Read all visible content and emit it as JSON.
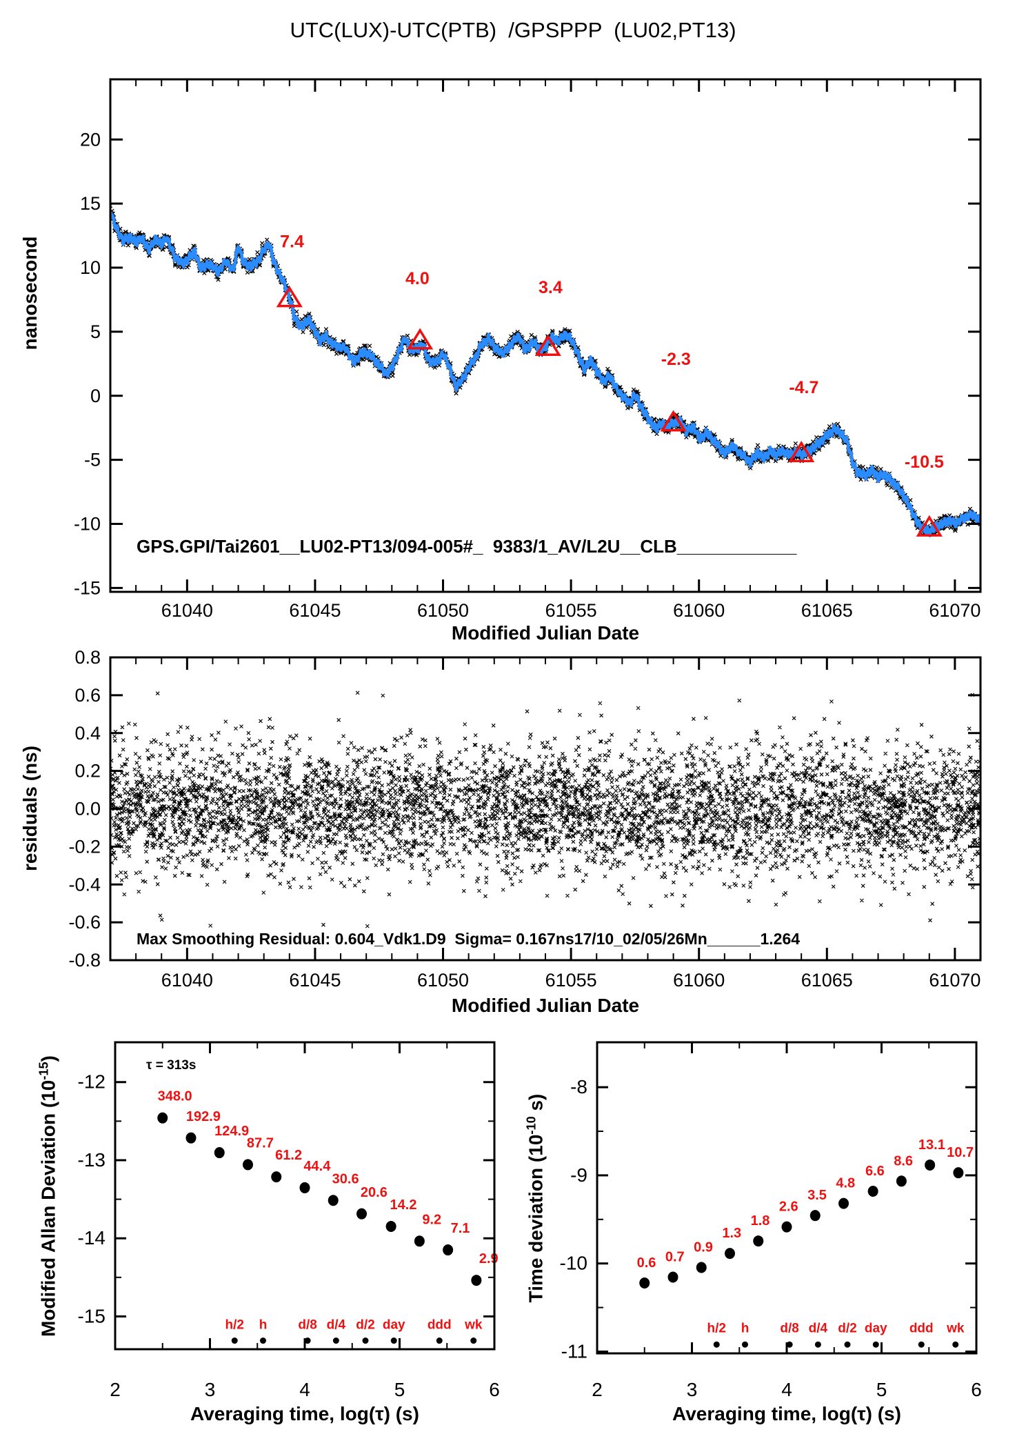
{
  "title": "UTC(LUX)-UTC(PTB)  /GPSPPP  (LU02,PT13)",
  "colors": {
    "blue": "#2b8cff",
    "red": "#ee1111",
    "black": "#000000"
  },
  "chart_data": [
    {
      "type": "line",
      "name": "phase-difference",
      "ylabel": "nanosecond",
      "xlabel": "Modified Julian Date",
      "annotation": "GPS.GPI/Tai2601__LU02-PT13/094-005#_  9383/1_AV/L2U__CLB____________",
      "xlim": [
        61037,
        61071
      ],
      "ylim": [
        -15.3,
        24.7
      ],
      "xticks": {
        "values": [
          61040,
          61045,
          61050,
          61055,
          61060,
          61065,
          61070
        ],
        "labels": [
          "61040",
          "61045",
          "61050",
          "61055",
          "61060",
          "61065",
          "61070"
        ],
        "minor_step": 1
      },
      "yticks": {
        "values": [
          20,
          15,
          10,
          5,
          0,
          -5,
          -10,
          -15
        ],
        "labels": [
          "20",
          "15",
          "10",
          "5",
          "0",
          "-5",
          "-10",
          "-15"
        ],
        "minor_step": null
      },
      "noise_sigma_ns": 0.17,
      "triangle_markers": [
        {
          "label": "7.4",
          "x": 61044.0,
          "y": 7.6,
          "label_x": 61044.1,
          "label_y": 11.6
        },
        {
          "label": "4.0",
          "x": 61049.1,
          "y": 4.3,
          "label_x": 61049.0,
          "label_y": 8.7
        },
        {
          "label": "3.4",
          "x": 61054.1,
          "y": 3.8,
          "label_x": 61054.2,
          "label_y": 8.0
        },
        {
          "label": "-2.3",
          "x": 61059.0,
          "y": -2.1,
          "label_x": 61059.1,
          "label_y": 2.4
        },
        {
          "label": "-4.7",
          "x": 61064.0,
          "y": -4.5,
          "label_x": 61064.1,
          "label_y": 0.2
        },
        {
          "label": "-10.5",
          "x": 61069.0,
          "y": -10.3,
          "label_x": 61068.8,
          "label_y": -5.6
        }
      ],
      "waypoints": [
        [
          61037.0,
          14.4
        ],
        [
          61037.2,
          13.2
        ],
        [
          61037.5,
          12.1
        ],
        [
          61037.8,
          12.4
        ],
        [
          61038.0,
          11.9
        ],
        [
          61038.2,
          12.4
        ],
        [
          61038.5,
          11.4
        ],
        [
          61038.8,
          12.3
        ],
        [
          61039.0,
          11.8
        ],
        [
          61039.2,
          12.4
        ],
        [
          61039.5,
          10.9
        ],
        [
          61039.8,
          10.3
        ],
        [
          61040.0,
          10.6
        ],
        [
          61040.3,
          11.3
        ],
        [
          61040.5,
          10.0
        ],
        [
          61040.8,
          10.2
        ],
        [
          61041.0,
          10.2
        ],
        [
          61041.2,
          9.6
        ],
        [
          61041.5,
          10.5
        ],
        [
          61041.8,
          9.8
        ],
        [
          61042.0,
          11.7
        ],
        [
          61042.2,
          10.4
        ],
        [
          61042.5,
          10.1
        ],
        [
          61042.8,
          10.6
        ],
        [
          61043.0,
          11.4
        ],
        [
          61043.2,
          11.9
        ],
        [
          61043.4,
          10.4
        ],
        [
          61043.6,
          9.5
        ],
        [
          61043.8,
          8.8
        ],
        [
          61044.0,
          7.7
        ],
        [
          61044.2,
          6.1
        ],
        [
          61044.4,
          5.4
        ],
        [
          61044.6,
          5.7
        ],
        [
          61044.8,
          5.9
        ],
        [
          61045.0,
          5.0
        ],
        [
          61045.2,
          4.3
        ],
        [
          61045.4,
          4.7
        ],
        [
          61045.6,
          4.2
        ],
        [
          61045.8,
          3.9
        ],
        [
          61046.0,
          3.8
        ],
        [
          61046.2,
          3.7
        ],
        [
          61046.5,
          2.6
        ],
        [
          61046.8,
          3.3
        ],
        [
          61047.0,
          3.4
        ],
        [
          61047.2,
          3.1
        ],
        [
          61047.5,
          2.4
        ],
        [
          61047.8,
          1.7
        ],
        [
          61048.0,
          2.2
        ],
        [
          61048.2,
          3.1
        ],
        [
          61048.5,
          4.5
        ],
        [
          61048.7,
          3.7
        ],
        [
          61049.0,
          3.6
        ],
        [
          61049.2,
          4.1
        ],
        [
          61049.4,
          2.9
        ],
        [
          61049.6,
          2.6
        ],
        [
          61049.8,
          2.7
        ],
        [
          61050.0,
          3.3
        ],
        [
          61050.2,
          2.5
        ],
        [
          61050.5,
          0.7
        ],
        [
          61050.8,
          1.4
        ],
        [
          61051.0,
          2.2
        ],
        [
          61051.3,
          3.1
        ],
        [
          61051.5,
          4.0
        ],
        [
          61051.8,
          4.5
        ],
        [
          61052.0,
          3.8
        ],
        [
          61052.3,
          3.3
        ],
        [
          61052.5,
          3.6
        ],
        [
          61052.8,
          4.4
        ],
        [
          61053.0,
          4.6
        ],
        [
          61053.2,
          3.5
        ],
        [
          61053.5,
          4.2
        ],
        [
          61053.8,
          3.6
        ],
        [
          61054.0,
          3.7
        ],
        [
          61054.2,
          4.6
        ],
        [
          61054.5,
          4.3
        ],
        [
          61054.8,
          4.8
        ],
        [
          61055.0,
          4.4
        ],
        [
          61055.2,
          3.6
        ],
        [
          61055.5,
          2.1
        ],
        [
          61055.8,
          2.8
        ],
        [
          61056.0,
          1.9
        ],
        [
          61056.3,
          1.1
        ],
        [
          61056.5,
          1.6
        ],
        [
          61056.8,
          0.5
        ],
        [
          61057.0,
          0.0
        ],
        [
          61057.3,
          -0.6
        ],
        [
          61057.5,
          0.1
        ],
        [
          61057.8,
          -1.1
        ],
        [
          61058.0,
          -1.7
        ],
        [
          61058.3,
          -2.6
        ],
        [
          61058.5,
          -2.2
        ],
        [
          61058.8,
          -2.4
        ],
        [
          61059.0,
          -2.1
        ],
        [
          61059.3,
          -2.0
        ],
        [
          61059.5,
          -2.8
        ],
        [
          61059.8,
          -2.4
        ],
        [
          61060.0,
          -3.4
        ],
        [
          61060.3,
          -2.9
        ],
        [
          61060.5,
          -3.3
        ],
        [
          61060.8,
          -4.0
        ],
        [
          61061.0,
          -4.5
        ],
        [
          61061.3,
          -3.9
        ],
        [
          61061.5,
          -4.3
        ],
        [
          61061.8,
          -4.8
        ],
        [
          61062.0,
          -5.2
        ],
        [
          61062.3,
          -4.4
        ],
        [
          61062.5,
          -4.9
        ],
        [
          61062.8,
          -4.3
        ],
        [
          61063.0,
          -4.6
        ],
        [
          61063.3,
          -4.3
        ],
        [
          61063.5,
          -4.6
        ],
        [
          61063.8,
          -4.4
        ],
        [
          61064.0,
          -4.6
        ],
        [
          61064.3,
          -4.3
        ],
        [
          61064.5,
          -4.0
        ],
        [
          61064.8,
          -3.5
        ],
        [
          61065.0,
          -3.1
        ],
        [
          61065.3,
          -2.6
        ],
        [
          61065.5,
          -2.8
        ],
        [
          61065.8,
          -3.6
        ],
        [
          61066.0,
          -5.2
        ],
        [
          61066.2,
          -6.0
        ],
        [
          61066.5,
          -6.2
        ],
        [
          61066.8,
          -5.8
        ],
        [
          61067.0,
          -6.4
        ],
        [
          61067.2,
          -6.1
        ],
        [
          61067.5,
          -6.6
        ],
        [
          61067.8,
          -7.2
        ],
        [
          61068.0,
          -7.8
        ],
        [
          61068.2,
          -8.5
        ],
        [
          61068.5,
          -9.8
        ],
        [
          61068.7,
          -10.3
        ],
        [
          61069.0,
          -10.6
        ],
        [
          61069.2,
          -10.3
        ],
        [
          61069.5,
          -10.0
        ],
        [
          61069.8,
          -9.7
        ],
        [
          61070.0,
          -10.0
        ],
        [
          61070.2,
          -9.7
        ],
        [
          61070.5,
          -9.4
        ],
        [
          61070.7,
          -9.3
        ],
        [
          61070.9,
          -9.6
        ],
        [
          61071.0,
          -9.8
        ]
      ]
    },
    {
      "type": "scatter",
      "name": "smoothing-residuals",
      "ylabel": "residuals (ns)",
      "xlabel": "Modified Julian Date",
      "annotation": "Max Smoothing Residual: 0.604_Vdk1.D9  Sigma= 0.167ns17/10_02/05/26Mn______1.264",
      "xlim": [
        61037,
        61071
      ],
      "ylim": [
        -0.8,
        0.8
      ],
      "xticks": {
        "values": [
          61040,
          61045,
          61050,
          61055,
          61060,
          61065,
          61070
        ],
        "labels": [
          "61040",
          "61045",
          "61050",
          "61055",
          "61060",
          "61065",
          "61070"
        ],
        "minor_step": 1
      },
      "yticks": {
        "values": [
          0.8,
          0.6,
          0.4,
          0.2,
          0.0,
          -0.2,
          -0.4,
          -0.6,
          -0.8
        ],
        "labels": [
          "0.8",
          "0.6",
          "0.4",
          "0.2",
          "0.0",
          "-0.2",
          "-0.4",
          "-0.6",
          "-0.8"
        ],
        "minor_step": null
      },
      "sigma_ns": 0.167,
      "n_points": 5200
    },
    {
      "type": "scatter",
      "name": "modified-allan-deviation",
      "ylabel_prefix": "Modified Allan Deviation (10",
      "ylabel_sup": "-15",
      "ylabel_suffix": ")",
      "xlabel": "Averaging time, log(τ) (s)",
      "note": "τ = 313s",
      "exponent": -15,
      "xlim": [
        2,
        6
      ],
      "ylim": [
        -15.42,
        -11.49
      ],
      "xticks": {
        "values": [
          2,
          3,
          4,
          5,
          6
        ],
        "labels": [
          "2",
          "3",
          "4",
          "5",
          "6"
        ],
        "minor": [
          2.5,
          3.5,
          4.5,
          5.5
        ]
      },
      "yticks": {
        "values": [
          -12,
          -13,
          -14,
          -15
        ],
        "labels": [
          "-12",
          "-13",
          "-14",
          "-15"
        ],
        "minor": [
          -12.5,
          -13.5,
          -14.5
        ]
      },
      "log_tau": [
        2.5,
        2.8,
        3.1,
        3.4,
        3.7,
        4.0,
        4.3,
        4.6,
        4.91,
        5.21,
        5.51,
        5.81
      ],
      "values": [
        348.0,
        192.9,
        124.9,
        87.7,
        61.2,
        44.4,
        30.6,
        20.6,
        14.2,
        9.2,
        7.1,
        2.9
      ],
      "point_labels": [
        "348.0",
        "192.9",
        "124.9",
        "87.7",
        "61.2",
        "44.4",
        "30.6",
        "20.6",
        "14.2",
        "9.2",
        "7.1",
        "2.9"
      ],
      "label_dx_dec": 0.13,
      "label_dy_dec": 0.22,
      "time_markers": {
        "labels": [
          "h/2",
          "h",
          "d/8",
          "d/4",
          "d/2",
          "day",
          "ddd",
          "wk"
        ],
        "log_tau": [
          3.26,
          3.56,
          4.03,
          4.33,
          4.64,
          4.94,
          5.42,
          5.78
        ],
        "dot_y": -15.31,
        "label_y": -15.16
      }
    },
    {
      "type": "scatter",
      "name": "time-deviation",
      "ylabel_prefix": "Time deviation (10",
      "ylabel_sup": "-10",
      "ylabel_suffix": " s)",
      "xlabel": "Averaging time, log(τ) (s)",
      "exponent": -10,
      "xlim": [
        2,
        6
      ],
      "ylim": [
        -11.02,
        -7.49
      ],
      "xticks": {
        "values": [
          2,
          3,
          4,
          5,
          6
        ],
        "labels": [
          "2",
          "3",
          "4",
          "5",
          "6"
        ],
        "minor": [
          2.5,
          3.5,
          4.5,
          5.5
        ]
      },
      "yticks": {
        "values": [
          -8,
          -9,
          -10,
          -11
        ],
        "labels": [
          "-8",
          "-9",
          "-10",
          "-11"
        ],
        "minor": [
          -8.5,
          -9.5,
          -10.5
        ]
      },
      "log_tau": [
        2.5,
        2.8,
        3.1,
        3.4,
        3.7,
        4.0,
        4.3,
        4.6,
        4.91,
        5.21,
        5.51,
        5.81
      ],
      "values": [
        0.6,
        0.7,
        0.9,
        1.3,
        1.8,
        2.6,
        3.5,
        4.8,
        6.6,
        8.6,
        13.1,
        10.7
      ],
      "point_labels": [
        "0.6",
        "0.7",
        "0.9",
        "1.3",
        "1.8",
        "2.6",
        "3.5",
        "4.8",
        "6.6",
        "8.6",
        "13.1",
        "10.7"
      ],
      "label_dx_dec": 0.02,
      "label_dy_dec": 0.18,
      "time_markers": {
        "labels": [
          "h/2",
          "h",
          "d/8",
          "d/4",
          "d/2",
          "day",
          "ddd",
          "wk"
        ],
        "log_tau": [
          3.26,
          3.56,
          4.03,
          4.33,
          4.64,
          4.94,
          5.42,
          5.78
        ],
        "dot_y": -10.92,
        "label_y": -10.78
      }
    }
  ]
}
